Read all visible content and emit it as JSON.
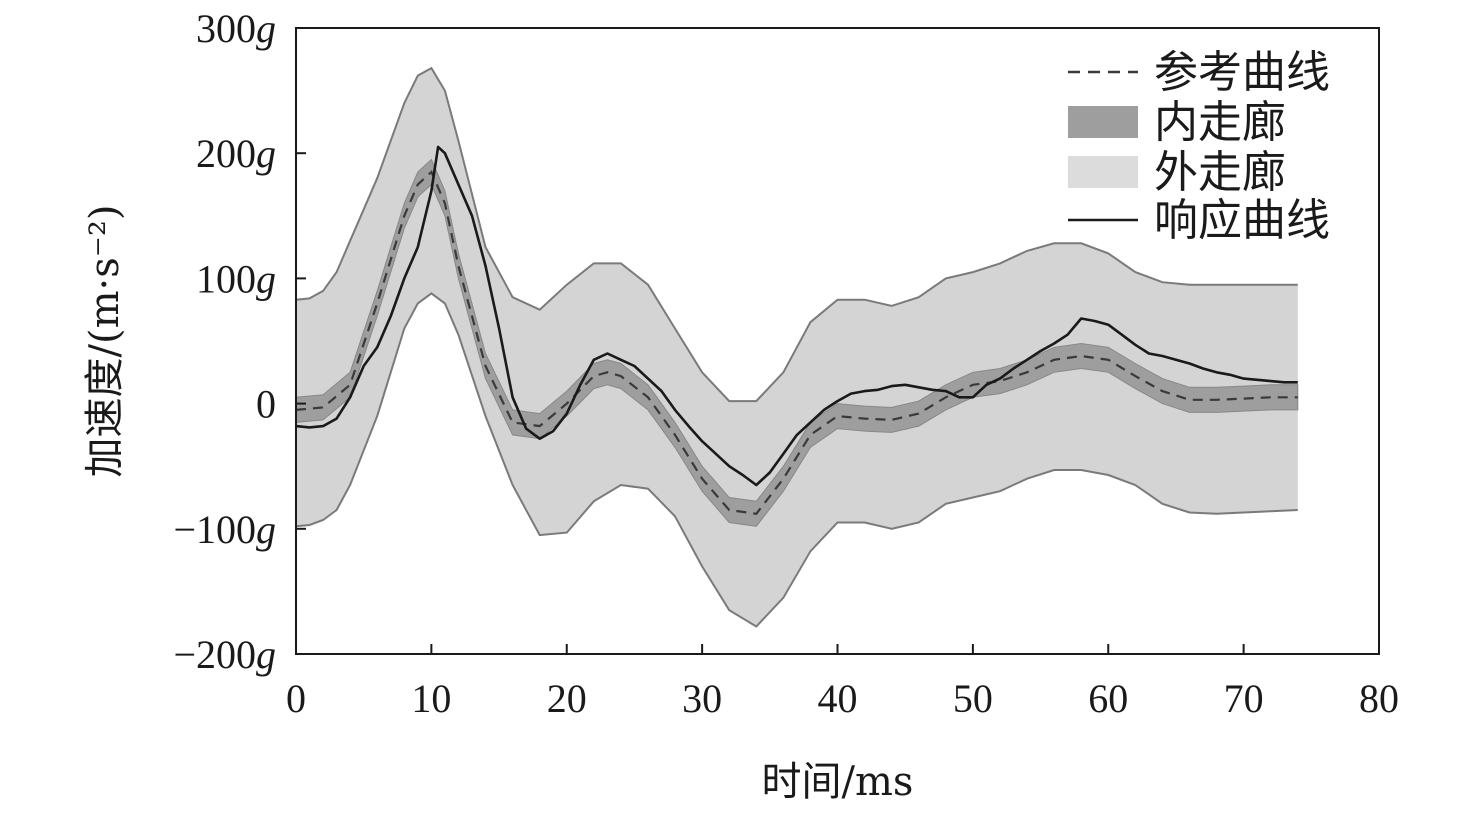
{
  "chart_data": {
    "type": "line",
    "xlabel": "时间/ms",
    "ylabel": "加速度/(m·s⁻²)",
    "xlim": [
      0,
      80
    ],
    "ylim": [
      -200,
      300
    ],
    "x_ticks": [
      0,
      10,
      20,
      30,
      40,
      50,
      60,
      70,
      80
    ],
    "x_tick_labels": [
      "0",
      "10",
      "20",
      "30",
      "40",
      "50",
      "60",
      "70",
      "80"
    ],
    "y_ticks": [
      -200,
      -100,
      0,
      100,
      200,
      300
    ],
    "y_tick_labels": [
      "−200g",
      "−100g",
      "0",
      "100g",
      "200g",
      "300g"
    ],
    "legend_position": "top-right",
    "legend": [
      {
        "key": "reference",
        "label": "参考曲线",
        "style": "dashed-line"
      },
      {
        "key": "inner",
        "label": "内走廊",
        "style": "dark-band"
      },
      {
        "key": "outer",
        "label": "外走廊",
        "style": "light-band"
      },
      {
        "key": "response",
        "label": "响应曲线",
        "style": "solid-line"
      }
    ],
    "reference_curve": {
      "x": [
        0,
        2,
        4,
        6,
        8,
        9,
        10,
        11,
        12,
        14,
        16,
        18,
        20,
        22,
        23,
        24,
        26,
        28,
        30,
        32,
        34,
        36,
        38,
        40,
        42,
        44,
        46,
        48,
        50,
        52,
        54,
        56,
        58,
        60,
        62,
        64,
        66,
        68,
        70,
        72,
        74
      ],
      "y": [
        -5,
        -3,
        15,
        80,
        150,
        175,
        185,
        160,
        110,
        30,
        -15,
        -18,
        0,
        22,
        25,
        22,
        5,
        -25,
        -60,
        -85,
        -88,
        -60,
        -25,
        -10,
        -12,
        -13,
        -8,
        5,
        15,
        18,
        25,
        35,
        38,
        35,
        22,
        10,
        3,
        3,
        4,
        5,
        5
      ]
    },
    "inner_corridor": {
      "x": [
        0,
        2,
        4,
        6,
        8,
        9,
        10,
        11,
        12,
        14,
        16,
        18,
        20,
        22,
        23,
        24,
        26,
        28,
        30,
        32,
        34,
        36,
        38,
        40,
        42,
        44,
        46,
        48,
        50,
        52,
        54,
        56,
        58,
        60,
        62,
        64,
        66,
        68,
        70,
        72,
        74
      ],
      "upper": [
        5,
        7,
        25,
        90,
        160,
        185,
        195,
        170,
        120,
        40,
        -5,
        -8,
        10,
        32,
        35,
        32,
        15,
        -15,
        -50,
        -75,
        -78,
        -50,
        -15,
        0,
        -2,
        -3,
        2,
        15,
        25,
        28,
        35,
        45,
        48,
        45,
        32,
        20,
        13,
        13,
        14,
        15,
        15
      ],
      "lower": [
        -15,
        -13,
        5,
        70,
        140,
        165,
        175,
        150,
        100,
        20,
        -25,
        -28,
        -10,
        12,
        15,
        12,
        -5,
        -35,
        -70,
        -95,
        -98,
        -70,
        -35,
        -20,
        -22,
        -23,
        -18,
        -5,
        5,
        8,
        15,
        25,
        28,
        25,
        12,
        0,
        -7,
        -7,
        -6,
        -5,
        -5
      ]
    },
    "outer_corridor": {
      "x": [
        0,
        1,
        2,
        3,
        4,
        6,
        8,
        9,
        10,
        11,
        12,
        14,
        16,
        18,
        20,
        22,
        24,
        26,
        28,
        30,
        32,
        34,
        36,
        38,
        40,
        42,
        44,
        46,
        48,
        50,
        52,
        54,
        56,
        58,
        60,
        62,
        64,
        66,
        68,
        70,
        72,
        74
      ],
      "upper": [
        83,
        84,
        90,
        105,
        130,
        180,
        240,
        262,
        268,
        250,
        210,
        125,
        85,
        75,
        95,
        112,
        112,
        95,
        60,
        25,
        2,
        2,
        25,
        65,
        83,
        83,
        78,
        85,
        100,
        105,
        112,
        122,
        128,
        128,
        120,
        105,
        97,
        95,
        95,
        95,
        95,
        95
      ],
      "lower": [
        -98,
        -97,
        -93,
        -85,
        -65,
        -10,
        60,
        80,
        88,
        80,
        55,
        -10,
        -65,
        -105,
        -103,
        -78,
        -65,
        -68,
        -90,
        -130,
        -165,
        -178,
        -155,
        -118,
        -95,
        -95,
        -100,
        -95,
        -80,
        -75,
        -70,
        -60,
        -53,
        -53,
        -57,
        -65,
        -80,
        -87,
        -88,
        -87,
        -86,
        -85
      ]
    },
    "response_curve": {
      "x": [
        0,
        1,
        2,
        3,
        4,
        5,
        6,
        7,
        8,
        9,
        10,
        10.5,
        11,
        12,
        13,
        14,
        15,
        16,
        17,
        18,
        19,
        20,
        21,
        22,
        23,
        24,
        25,
        26,
        27,
        28,
        29,
        30,
        31,
        32,
        33,
        34,
        35,
        36,
        37,
        38,
        39,
        40,
        41,
        42,
        43,
        44,
        45,
        46,
        47,
        48,
        49,
        50,
        51,
        52,
        53,
        54,
        55,
        56,
        57,
        58,
        59,
        60,
        61,
        62,
        63,
        64,
        65,
        66,
        67,
        68,
        69,
        70,
        71,
        72,
        73,
        74
      ],
      "y": [
        -18,
        -19,
        -18,
        -12,
        5,
        30,
        45,
        70,
        100,
        125,
        170,
        205,
        200,
        175,
        150,
        110,
        60,
        5,
        -20,
        -28,
        -22,
        -8,
        15,
        35,
        40,
        35,
        30,
        20,
        10,
        -5,
        -18,
        -30,
        -40,
        -50,
        -57,
        -65,
        -55,
        -40,
        -25,
        -15,
        -5,
        2,
        8,
        10,
        11,
        14,
        15,
        13,
        11,
        10,
        5,
        5,
        15,
        20,
        28,
        35,
        42,
        48,
        55,
        68,
        66,
        63,
        55,
        47,
        40,
        38,
        35,
        32,
        28,
        25,
        23,
        20,
        19,
        18,
        17,
        17
      ]
    }
  }
}
